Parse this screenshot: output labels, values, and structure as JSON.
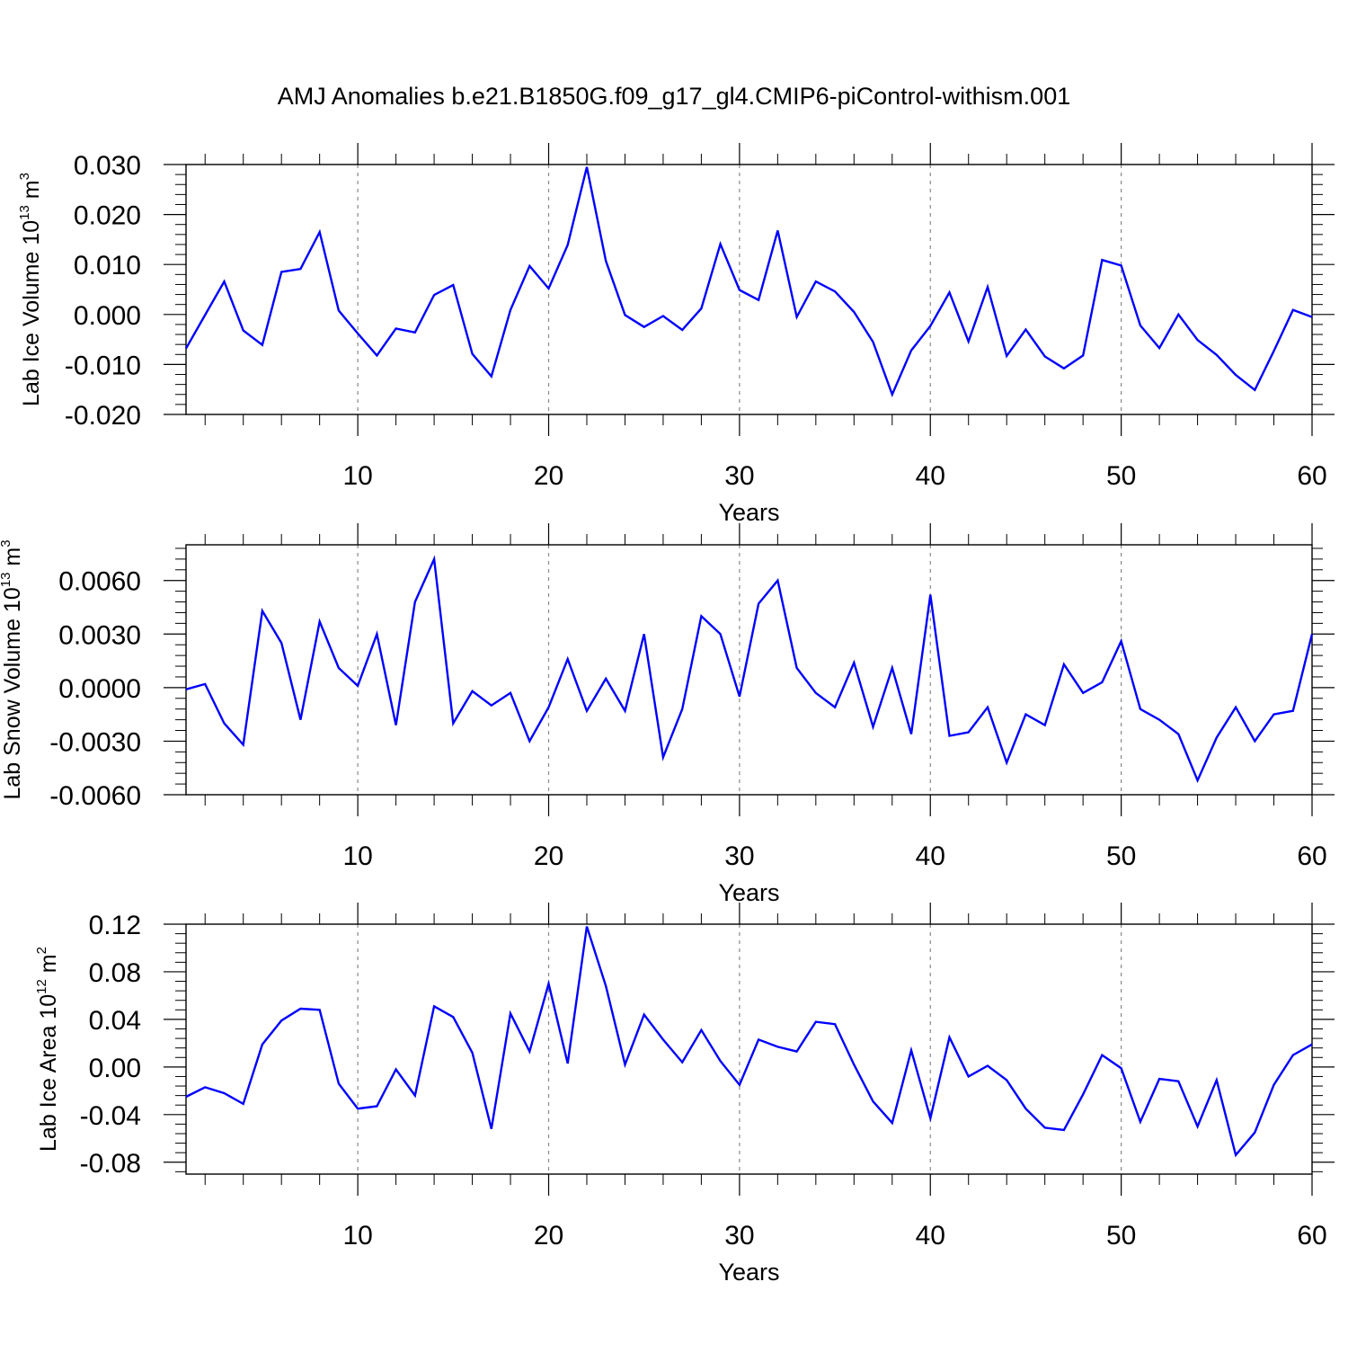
{
  "figure": {
    "title": "AMJ Anomalies b.e21.B1850G.f09_g17_gl4.CMIP6-piControl-withism.001"
  },
  "colors": {
    "line": "#0000ff",
    "axis": "#000000",
    "grid": "#888888"
  },
  "chart_data": [
    {
      "type": "line",
      "ylabel": "Lab Ice Volume 10",
      "ylabel_sup": "13",
      "ylabel_unit": " m",
      "ylabel_unit_sup": "3",
      "xlabel": "Years",
      "xlim": [
        1,
        60
      ],
      "ylim": [
        -0.02,
        0.03
      ],
      "yticks": [
        -0.02,
        -0.01,
        0.0,
        0.01,
        0.02,
        0.03
      ],
      "ytick_labels": [
        "-0.020",
        "-0.010",
        "0.000",
        "0.010",
        "0.020",
        "0.030"
      ],
      "xticks": [
        10,
        20,
        30,
        40,
        50,
        60
      ],
      "xtick_labels": [
        "10",
        "20",
        "30",
        "40",
        "50",
        "60"
      ],
      "grid_x": [
        10,
        20,
        30,
        40,
        50
      ],
      "x": [
        1,
        2,
        3,
        4,
        5,
        6,
        7,
        8,
        9,
        10,
        11,
        12,
        13,
        14,
        15,
        16,
        17,
        18,
        19,
        20,
        21,
        22,
        23,
        24,
        25,
        26,
        27,
        28,
        29,
        30,
        31,
        32,
        33,
        34,
        35,
        36,
        37,
        38,
        39,
        40,
        41,
        42,
        43,
        44,
        45,
        46,
        47,
        48,
        49,
        50,
        51,
        52,
        53,
        54,
        55,
        56,
        57,
        58,
        59,
        60
      ],
      "values": [
        -0.0068,
        -0.0001,
        0.0066,
        -0.0032,
        -0.0061,
        0.0085,
        0.0091,
        0.0165,
        0.0008,
        -0.0038,
        -0.0082,
        -0.0028,
        -0.0036,
        0.0039,
        0.0059,
        -0.0079,
        -0.0124,
        0.0009,
        0.0097,
        0.0052,
        0.0139,
        0.0295,
        0.0107,
        -0.0001,
        -0.0025,
        -0.0003,
        -0.0031,
        0.0012,
        0.0141,
        0.0049,
        0.0029,
        0.0168,
        -0.0005,
        0.0066,
        0.0046,
        0.0005,
        -0.0055,
        -0.016,
        -0.0072,
        -0.0023,
        0.0044,
        -0.0054,
        0.0055,
        -0.0083,
        -0.003,
        -0.0084,
        -0.0108,
        -0.0082,
        0.0109,
        0.0098,
        -0.0022,
        -0.0067,
        0.0,
        -0.0051,
        -0.0081,
        -0.0121,
        -0.0151,
        -0.0073,
        0.0009,
        -0.0005
      ]
    },
    {
      "type": "line",
      "ylabel": "Lab Snow Volume 10",
      "ylabel_sup": "13",
      "ylabel_unit": " m",
      "ylabel_unit_sup": "3",
      "xlabel": "Years",
      "xlim": [
        1,
        60
      ],
      "ylim": [
        -0.006,
        0.008
      ],
      "yticks": [
        -0.006,
        -0.003,
        0.0,
        0.003,
        0.006
      ],
      "ytick_labels": [
        "-0.0060",
        "-0.0030",
        "0.0000",
        "0.0030",
        "0.0060"
      ],
      "xticks": [
        10,
        20,
        30,
        40,
        50,
        60
      ],
      "xtick_labels": [
        "10",
        "20",
        "30",
        "40",
        "50",
        "60"
      ],
      "grid_x": [
        10,
        20,
        30,
        40,
        50
      ],
      "x": [
        1,
        2,
        3,
        4,
        5,
        6,
        7,
        8,
        9,
        10,
        11,
        12,
        13,
        14,
        15,
        16,
        17,
        18,
        19,
        20,
        21,
        22,
        23,
        24,
        25,
        26,
        27,
        28,
        29,
        30,
        31,
        32,
        33,
        34,
        35,
        36,
        37,
        38,
        39,
        40,
        41,
        42,
        43,
        44,
        45,
        46,
        47,
        48,
        49,
        50,
        51,
        52,
        53,
        54,
        55,
        56,
        57,
        58,
        59,
        60
      ],
      "values": [
        -0.0001,
        0.0002,
        -0.002,
        -0.0032,
        0.0043,
        0.0025,
        -0.0018,
        0.0037,
        0.0011,
        0.0001,
        0.003,
        -0.0021,
        0.0048,
        0.0072,
        -0.002,
        -0.0002,
        -0.001,
        -0.0003,
        -0.003,
        -0.0011,
        0.0016,
        -0.0013,
        0.0005,
        -0.0013,
        0.003,
        -0.0039,
        -0.0012,
        0.004,
        0.003,
        -0.0005,
        0.0047,
        0.006,
        0.0011,
        -0.0003,
        -0.0011,
        0.0014,
        -0.0022,
        0.0011,
        -0.0026,
        0.0052,
        -0.0027,
        -0.0025,
        -0.0011,
        -0.0042,
        -0.0015,
        -0.0021,
        0.0013,
        -0.0003,
        0.0003,
        0.0026,
        -0.0012,
        -0.0018,
        -0.0026,
        -0.0052,
        -0.0028,
        -0.0011,
        -0.003,
        -0.0015,
        -0.0013,
        0.003
      ]
    },
    {
      "type": "line",
      "ylabel": "Lab Ice Area 10",
      "ylabel_sup": "12",
      "ylabel_unit": " m",
      "ylabel_unit_sup": "2",
      "xlabel": "Years",
      "xlim": [
        1,
        60
      ],
      "ylim": [
        -0.09,
        0.12
      ],
      "yticks": [
        -0.08,
        -0.04,
        0.0,
        0.04,
        0.08,
        0.12
      ],
      "ytick_labels": [
        "-0.08",
        "-0.04",
        "0.00",
        "0.04",
        "0.08",
        "0.12"
      ],
      "xticks": [
        10,
        20,
        30,
        40,
        50,
        60
      ],
      "xtick_labels": [
        "10",
        "20",
        "30",
        "40",
        "50",
        "60"
      ],
      "grid_x": [
        10,
        20,
        30,
        40,
        50
      ],
      "x": [
        1,
        2,
        3,
        4,
        5,
        6,
        7,
        8,
        9,
        10,
        11,
        12,
        13,
        14,
        15,
        16,
        17,
        18,
        19,
        20,
        21,
        22,
        23,
        24,
        25,
        26,
        27,
        28,
        29,
        30,
        31,
        32,
        33,
        34,
        35,
        36,
        37,
        38,
        39,
        40,
        41,
        42,
        43,
        44,
        45,
        46,
        47,
        48,
        49,
        50,
        51,
        52,
        53,
        54,
        55,
        56,
        57,
        58,
        59,
        60
      ],
      "values": [
        -0.025,
        -0.017,
        -0.022,
        -0.031,
        0.019,
        0.039,
        0.049,
        0.048,
        -0.014,
        -0.035,
        -0.033,
        -0.002,
        -0.024,
        0.051,
        0.042,
        0.012,
        -0.052,
        0.045,
        0.013,
        0.07,
        0.003,
        0.118,
        0.068,
        0.002,
        0.044,
        0.023,
        0.004,
        0.031,
        0.005,
        -0.015,
        0.023,
        0.017,
        0.013,
        0.038,
        0.036,
        0.002,
        -0.029,
        -0.047,
        0.014,
        -0.043,
        0.025,
        -0.008,
        0.001,
        -0.011,
        -0.035,
        -0.051,
        -0.053,
        -0.023,
        0.01,
        -0.001,
        -0.046,
        -0.01,
        -0.012,
        -0.05,
        -0.011,
        -0.074,
        -0.055,
        -0.015,
        0.01,
        0.019
      ]
    }
  ]
}
